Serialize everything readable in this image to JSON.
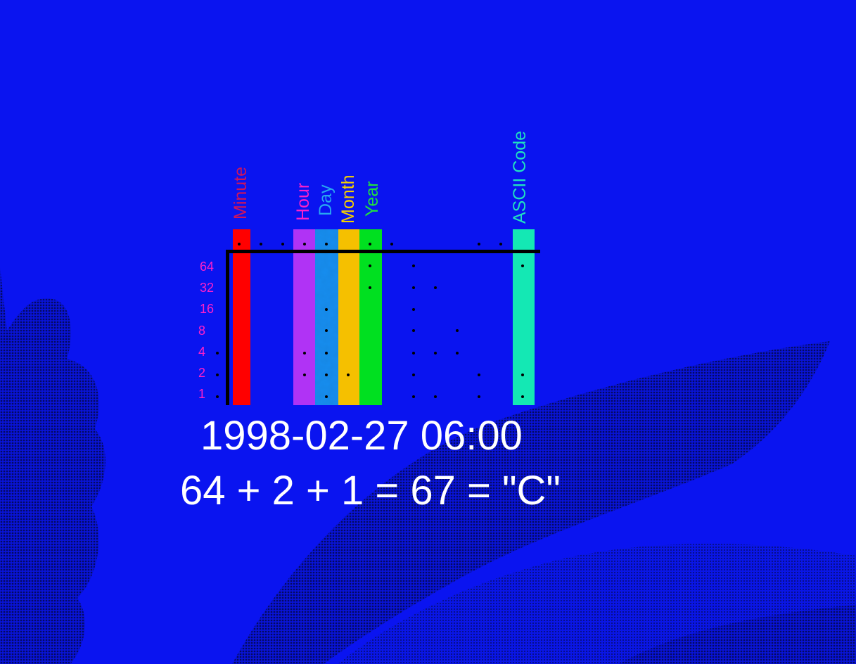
{
  "columns": [
    {
      "name": "Minute",
      "label": "Minute",
      "color": "#ff0000",
      "text_color": "#d0145a"
    },
    {
      "name": "Hour",
      "label": "Hour",
      "color": "#b033f5",
      "text_color": "#ff20c8"
    },
    {
      "name": "Day",
      "label": "Day",
      "color": "#1e8ef0",
      "text_color": "#28a8f0"
    },
    {
      "name": "Month",
      "label": "Month",
      "color": "#f5c000",
      "text_color": "#f5d000"
    },
    {
      "name": "Year",
      "label": "Year",
      "color": "#00e020",
      "text_color": "#20e040"
    },
    {
      "name": "ASCII Code",
      "label": "ASCII Code",
      "color": "#14e8b4",
      "text_color": "#20e0c0"
    }
  ],
  "bit_weights": [
    "64",
    "32",
    "16",
    "8",
    "4",
    "2",
    "1"
  ],
  "bit_weight_color": "#ff20c8",
  "timestamp": "1998-02-27  06:00",
  "equation": "64 + 2 + 1 = 67 = \"C\"",
  "background_color": "#0a14f0"
}
